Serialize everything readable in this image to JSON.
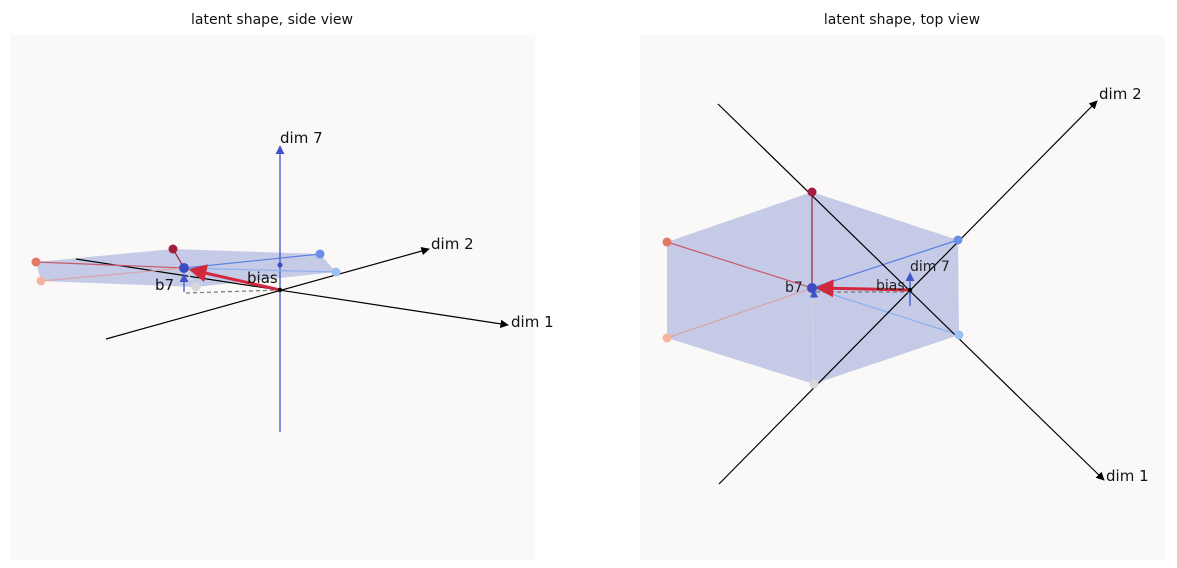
{
  "panels": [
    {
      "title": "latent shape, side view",
      "axis_labels": [
        "dim 1",
        "dim 2",
        "dim 7"
      ],
      "bias_label": "bias",
      "b7_label": "b7"
    },
    {
      "title": "latent shape, top view",
      "axis_labels": [
        "dim 1",
        "dim 2",
        "dim 7"
      ],
      "bias_label": "bias",
      "b7_label": "b7"
    }
  ],
  "colors": {
    "panel_bg": "#fbf9f8",
    "polygon_fill": "#c2c8e6",
    "axis": "#000000",
    "dim7_axis": "#3f55c7",
    "bias_vector": "#d2283d",
    "center_point": "#3b4cc0"
  }
}
